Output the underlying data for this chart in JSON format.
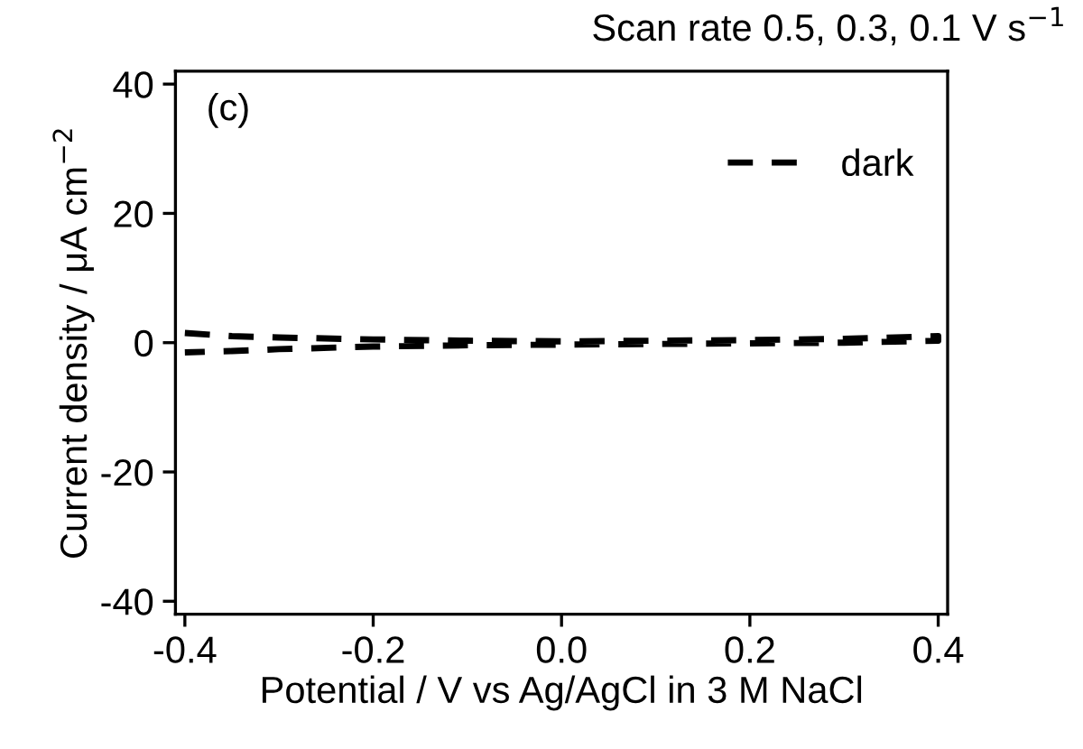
{
  "chart_data": {
    "type": "line",
    "title": "Scan rate 0.5, 0.3, 0.1 V s$^{−1}$",
    "xlabel": "Potential / V vs Ag/AgCl in 3 M NaCl",
    "ylabel": "Current density / μA cm$^{−2}$",
    "annotations": [
      "(c)"
    ],
    "series": [
      {
        "name": "dark",
        "color": "#000000",
        "x": [
          -0.4,
          -0.35,
          -0.3,
          -0.2,
          -0.1,
          0.0,
          0.1,
          0.2,
          0.3,
          0.4,
          0.4,
          0.3,
          0.2,
          0.1,
          0.0,
          -0.1,
          -0.2,
          -0.3,
          -0.35,
          -0.4
        ],
        "values": [
          1.5,
          1.0,
          0.8,
          0.5,
          0.3,
          0.2,
          0.3,
          0.4,
          0.6,
          1.0,
          0.3,
          0.0,
          -0.1,
          -0.2,
          -0.3,
          -0.4,
          -0.6,
          -1.0,
          -1.3,
          -1.5
        ]
      }
    ],
    "xlim": [
      -0.41,
      0.41
    ],
    "ylim": [
      -42,
      42
    ],
    "xticks": [
      -0.4,
      -0.2,
      {
        "value": 0,
        "label": "0.0"
      },
      0.2,
      0.4
    ],
    "yticks": [
      -40,
      -20,
      0,
      20,
      40
    ],
    "line_style": "dashed",
    "legend": "top right",
    "grid": false
  }
}
